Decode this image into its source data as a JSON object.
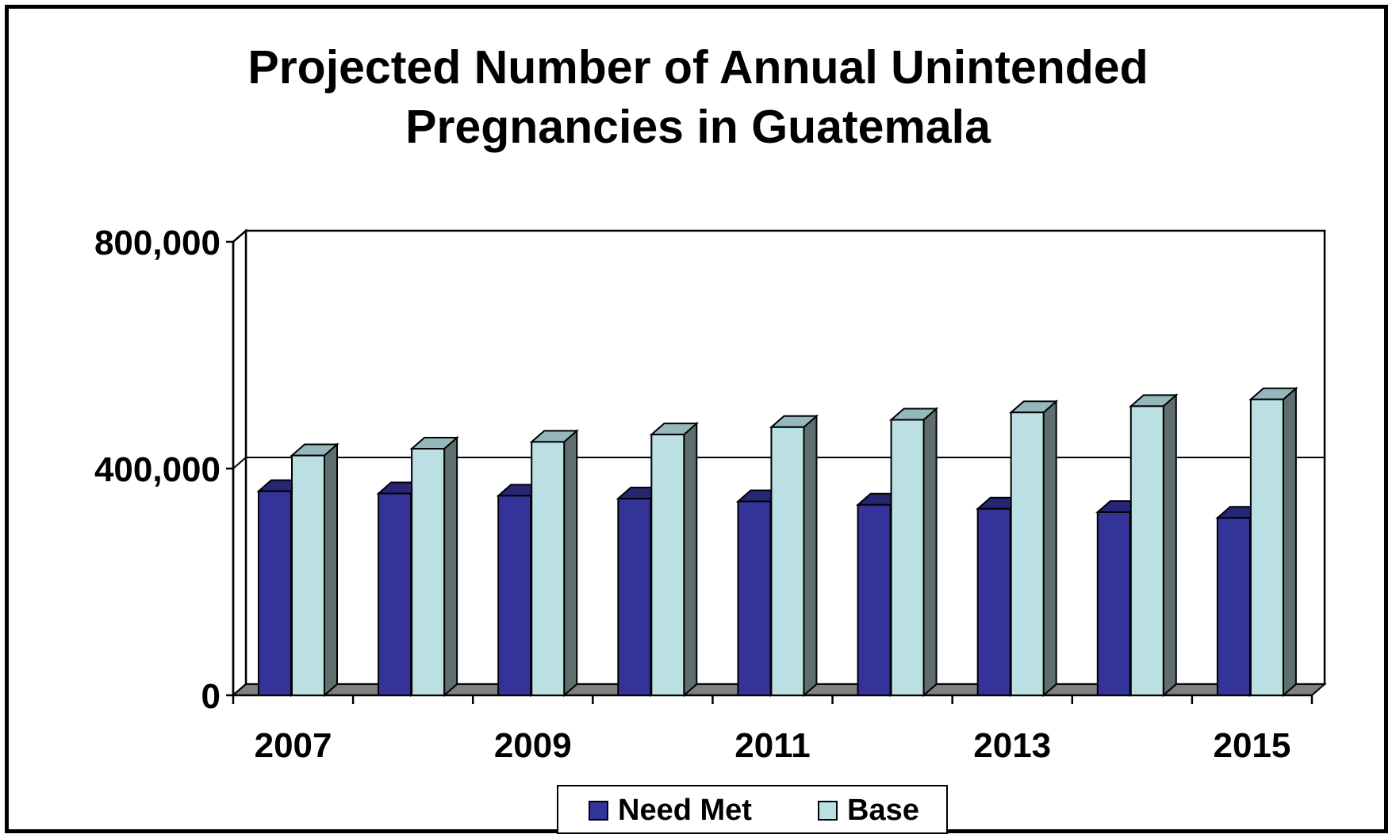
{
  "chart_data": {
    "type": "bar",
    "title": [
      "Projected Number of Annual Unintended",
      "Pregnancies in Guatemala"
    ],
    "xlabel": "",
    "ylabel": "",
    "categories": [
      "2007",
      "2008",
      "2009",
      "2010",
      "2011",
      "2012",
      "2013",
      "2014",
      "2015"
    ],
    "x_tick_labels": [
      "2007",
      "",
      "2009",
      "",
      "2011",
      "",
      "2013",
      "",
      "2015"
    ],
    "y_ticks": [
      0,
      400000,
      800000
    ],
    "y_tick_labels": [
      "0",
      "400,000",
      "800,000"
    ],
    "ylim": [
      0,
      800000
    ],
    "grid": true,
    "legend_position": "bottom",
    "series": [
      {
        "name": "Need Met",
        "color": "#333399",
        "values": [
          360000,
          356000,
          352000,
          347000,
          342000,
          336000,
          329000,
          323000,
          313000
        ]
      },
      {
        "name": "Base",
        "color": "#BBE0E3",
        "values": [
          423000,
          435000,
          447000,
          460000,
          473000,
          486000,
          499000,
          510000,
          522000
        ]
      }
    ]
  }
}
